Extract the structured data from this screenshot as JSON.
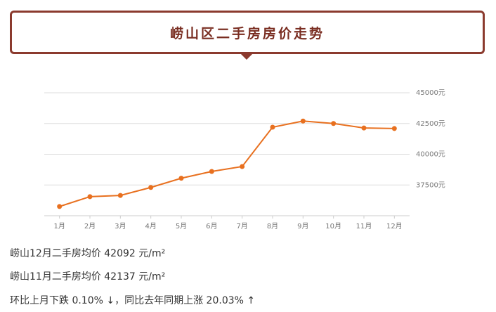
{
  "header": {
    "title": "崂山区二手房房价走势"
  },
  "chart_data": {
    "type": "line",
    "categories": [
      "1月",
      "2月",
      "3月",
      "4月",
      "5月",
      "6月",
      "7月",
      "8月",
      "9月",
      "10月",
      "11月",
      "12月"
    ],
    "series": [
      {
        "color": "#e8701f",
        "values": [
          35750,
          36550,
          36650,
          37300,
          38050,
          38600,
          39000,
          42200,
          42700,
          42500,
          42137,
          42092
        ]
      }
    ],
    "ylim": [
      35000,
      45000
    ],
    "yticks": [
      {
        "value": 37500,
        "label": "37500元"
      },
      {
        "value": 40000,
        "label": "40000元"
      },
      {
        "value": 42500,
        "label": "42500元"
      },
      {
        "value": 45000,
        "label": "45000元"
      }
    ],
    "grid": true
  },
  "text": [
    "崂山12月二手房均价 42092 元/m²",
    "崂山11月二手房均价 42137 元/m²",
    "环比上月下跌 0.10% ↓，同比去年同期上涨 20.03% ↑"
  ]
}
